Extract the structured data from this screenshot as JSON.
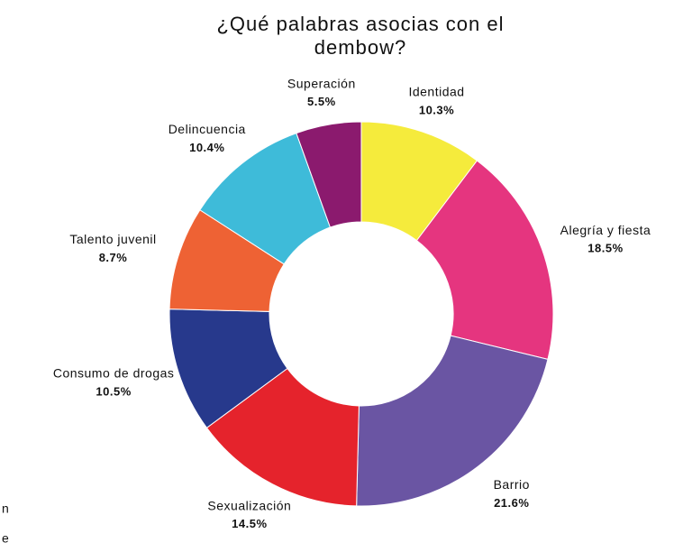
{
  "chart_data": {
    "type": "donut",
    "title": "¿Qué palabras asocias con el dembow?",
    "categories": [
      "Identidad",
      "Alegría y fiesta",
      "Barrio",
      "Sexualización",
      "Consumo de drogas",
      "Talento juvenil",
      "Delincuencia",
      "Superación"
    ],
    "values": [
      10.3,
      18.5,
      21.6,
      14.5,
      10.5,
      8.7,
      10.4,
      5.5
    ],
    "value_labels": [
      "10.3%",
      "18.5%",
      "21.6%",
      "14.5%",
      "10.5%",
      "8.7%",
      "10.4%",
      "5.5%"
    ],
    "colors": [
      "#f5eb3c",
      "#e5357f",
      "#6a55a3",
      "#e5232c",
      "#27398c",
      "#ee6234",
      "#3ebbd9",
      "#8b1a6e"
    ]
  },
  "cropped_text": [
    "n",
    "e"
  ]
}
